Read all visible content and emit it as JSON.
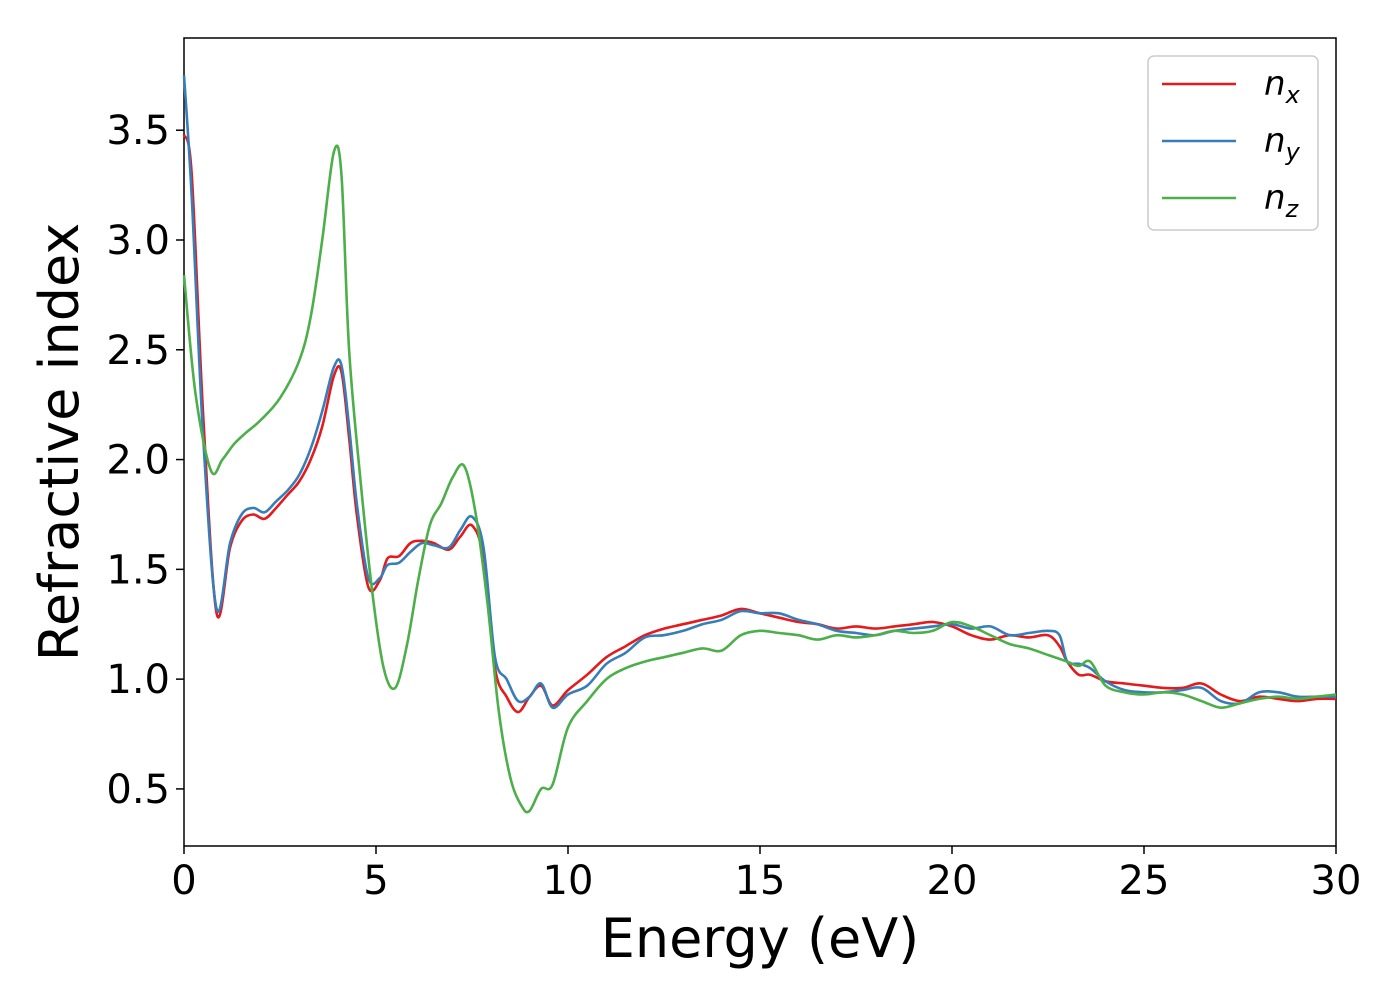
{
  "chart_data": {
    "type": "line",
    "title": "",
    "xlabel": "Energy (eV)",
    "ylabel": "Refractive index",
    "xlim": [
      0,
      30
    ],
    "ylim": [
      0.24,
      3.92
    ],
    "xticks": [
      0,
      5,
      10,
      15,
      20,
      25,
      30
    ],
    "xtick_labels": [
      "0",
      "5",
      "10",
      "15",
      "20",
      "25",
      "30"
    ],
    "yticks": [
      0.5,
      1.0,
      1.5,
      2.0,
      2.5,
      3.0,
      3.5
    ],
    "ytick_labels": [
      "0.5",
      "1.0",
      "1.5",
      "2.0",
      "2.5",
      "3.0",
      "3.5"
    ],
    "grid": false,
    "legend_position": "top-right",
    "series": [
      {
        "name": "n",
        "subscript": "x",
        "color": "#e41a1c",
        "x": [
          0,
          0.2,
          0.5,
          0.85,
          1.2,
          1.5,
          1.8,
          2.1,
          2.4,
          2.7,
          3.0,
          3.3,
          3.6,
          3.9,
          4.1,
          4.3,
          4.5,
          4.8,
          5.1,
          5.3,
          5.6,
          5.9,
          6.2,
          6.5,
          6.9,
          7.2,
          7.5,
          7.8,
          8.1,
          8.4,
          8.7,
          9.0,
          9.3,
          9.6,
          10.0,
          10.5,
          11.0,
          11.5,
          12.0,
          12.5,
          13.0,
          13.5,
          14.0,
          14.5,
          15.0,
          15.5,
          16.0,
          16.5,
          17.0,
          17.5,
          18.0,
          18.5,
          19.0,
          19.5,
          20.0,
          20.5,
          21.0,
          21.5,
          22.0,
          22.5,
          22.8,
          23.0,
          23.3,
          23.6,
          24.0,
          24.5,
          25.0,
          25.5,
          26.0,
          26.5,
          27.0,
          27.5,
          28.0,
          28.5,
          29.0,
          29.5,
          30.0
        ],
        "y": [
          3.48,
          3.3,
          2.2,
          1.3,
          1.6,
          1.72,
          1.75,
          1.73,
          1.78,
          1.84,
          1.9,
          2.0,
          2.15,
          2.38,
          2.4,
          2.1,
          1.75,
          1.42,
          1.45,
          1.55,
          1.56,
          1.62,
          1.63,
          1.62,
          1.59,
          1.65,
          1.7,
          1.55,
          1.05,
          0.92,
          0.85,
          0.92,
          0.97,
          0.88,
          0.95,
          1.02,
          1.1,
          1.15,
          1.2,
          1.23,
          1.25,
          1.27,
          1.29,
          1.32,
          1.3,
          1.28,
          1.26,
          1.25,
          1.23,
          1.24,
          1.23,
          1.24,
          1.25,
          1.26,
          1.24,
          1.2,
          1.18,
          1.2,
          1.19,
          1.2,
          1.15,
          1.08,
          1.02,
          1.02,
          0.99,
          0.98,
          0.97,
          0.96,
          0.96,
          0.98,
          0.93,
          0.9,
          0.92,
          0.91,
          0.9,
          0.91,
          0.91
        ]
      },
      {
        "name": "n",
        "subscript": "y",
        "color": "#377eb8",
        "x": [
          0,
          0.2,
          0.5,
          0.85,
          1.2,
          1.5,
          1.8,
          2.1,
          2.4,
          2.7,
          3.0,
          3.3,
          3.6,
          3.9,
          4.1,
          4.3,
          4.5,
          4.8,
          5.1,
          5.3,
          5.6,
          5.9,
          6.2,
          6.5,
          6.9,
          7.2,
          7.5,
          7.8,
          8.1,
          8.4,
          8.7,
          9.0,
          9.3,
          9.6,
          10.0,
          10.5,
          11.0,
          11.5,
          12.0,
          12.5,
          13.0,
          13.5,
          14.0,
          14.5,
          15.0,
          15.5,
          16.0,
          16.5,
          17.0,
          17.5,
          18.0,
          18.5,
          19.0,
          19.5,
          20.0,
          20.5,
          21.0,
          21.5,
          22.0,
          22.5,
          22.8,
          23.0,
          23.3,
          23.6,
          24.0,
          24.5,
          25.0,
          25.5,
          26.0,
          26.5,
          27.0,
          27.5,
          28.0,
          28.5,
          29.0,
          29.5,
          30.0
        ],
        "y": [
          3.75,
          3.2,
          2.1,
          1.32,
          1.62,
          1.75,
          1.78,
          1.76,
          1.81,
          1.86,
          1.93,
          2.05,
          2.22,
          2.42,
          2.43,
          2.15,
          1.8,
          1.46,
          1.46,
          1.52,
          1.53,
          1.58,
          1.62,
          1.61,
          1.6,
          1.68,
          1.74,
          1.6,
          1.1,
          1.0,
          0.9,
          0.92,
          0.98,
          0.87,
          0.93,
          0.97,
          1.07,
          1.12,
          1.19,
          1.2,
          1.22,
          1.25,
          1.27,
          1.31,
          1.3,
          1.3,
          1.27,
          1.25,
          1.22,
          1.21,
          1.2,
          1.22,
          1.23,
          1.24,
          1.25,
          1.23,
          1.24,
          1.2,
          1.21,
          1.22,
          1.2,
          1.08,
          1.07,
          1.05,
          0.99,
          0.95,
          0.94,
          0.94,
          0.95,
          0.96,
          0.9,
          0.89,
          0.94,
          0.94,
          0.92,
          0.92,
          0.92
        ]
      },
      {
        "name": "n",
        "subscript": "z",
        "color": "#4daf4a",
        "x": [
          0,
          0.3,
          0.7,
          1.0,
          1.3,
          1.6,
          2.0,
          2.5,
          3.0,
          3.3,
          3.6,
          3.9,
          4.1,
          4.3,
          4.6,
          4.9,
          5.2,
          5.5,
          5.8,
          6.1,
          6.4,
          6.7,
          7.0,
          7.3,
          7.6,
          7.9,
          8.2,
          8.5,
          8.8,
          9.0,
          9.3,
          9.6,
          10.0,
          10.5,
          11.0,
          11.5,
          12.0,
          12.5,
          13.0,
          13.5,
          14.0,
          14.5,
          15.0,
          15.5,
          16.0,
          16.5,
          17.0,
          17.5,
          18.0,
          18.5,
          19.0,
          19.5,
          20.0,
          20.5,
          21.0,
          21.5,
          22.0,
          22.5,
          23.0,
          23.3,
          23.6,
          24.0,
          24.5,
          25.0,
          25.5,
          26.0,
          26.5,
          27.0,
          27.5,
          28.0,
          28.5,
          29.0,
          29.5,
          30.0
        ],
        "y": [
          2.84,
          2.3,
          1.95,
          2.0,
          2.07,
          2.12,
          2.18,
          2.28,
          2.45,
          2.65,
          3.0,
          3.4,
          3.3,
          2.5,
          1.9,
          1.4,
          1.05,
          0.96,
          1.15,
          1.45,
          1.7,
          1.8,
          1.92,
          1.97,
          1.75,
          1.35,
          0.85,
          0.55,
          0.42,
          0.4,
          0.5,
          0.52,
          0.78,
          0.9,
          1.0,
          1.05,
          1.08,
          1.1,
          1.12,
          1.14,
          1.13,
          1.2,
          1.22,
          1.21,
          1.2,
          1.18,
          1.2,
          1.19,
          1.2,
          1.22,
          1.21,
          1.22,
          1.26,
          1.24,
          1.2,
          1.16,
          1.14,
          1.11,
          1.08,
          1.06,
          1.08,
          0.97,
          0.94,
          0.93,
          0.94,
          0.93,
          0.9,
          0.87,
          0.89,
          0.91,
          0.92,
          0.91,
          0.92,
          0.93
        ]
      }
    ]
  }
}
